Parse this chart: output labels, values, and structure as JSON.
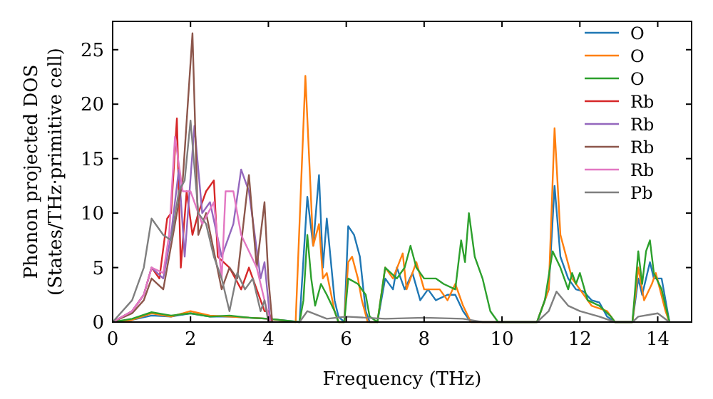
{
  "chart_data": {
    "type": "line",
    "xlabel": "Frequency (THz)",
    "ylabel": "Phonon projected DOS\n(States/THz·primitive cell)",
    "xlim": [
      0,
      14.87
    ],
    "ylim": [
      0,
      27.6
    ],
    "xticks": [
      0,
      2,
      4,
      6,
      8,
      10,
      12,
      14
    ],
    "yticks": [
      0,
      5,
      10,
      15,
      20,
      25
    ],
    "legend": "top right",
    "grid": false,
    "line_style": "solid",
    "series": [
      {
        "name": "O",
        "color": "#1f77b4",
        "x": [
          0,
          0.5,
          1,
          1.5,
          2,
          2.5,
          3,
          3.5,
          4,
          4.8,
          5,
          5.15,
          5.3,
          5.4,
          5.5,
          5.7,
          5.8,
          5.95,
          6.05,
          6.2,
          6.35,
          6.5,
          6.6,
          6.8,
          7,
          7.2,
          7.3,
          7.5,
          7.7,
          7.9,
          8.1,
          8.3,
          8.6,
          8.8,
          9,
          9.2,
          10.9,
          11.2,
          11.35,
          11.5,
          11.7,
          11.9,
          12.1,
          12.3,
          12.5,
          12.7,
          12.9,
          13.35,
          13.5,
          13.6,
          13.8,
          13.9,
          14.1,
          14.3
        ],
        "values": [
          0,
          0.2,
          0.6,
          0.5,
          0.8,
          0.5,
          0.5,
          0.4,
          0.3,
          0,
          11.5,
          7,
          13.5,
          5,
          9.5,
          2,
          0.5,
          0,
          8.8,
          8,
          6,
          1,
          0,
          0,
          4,
          3,
          5,
          3,
          4.5,
          2,
          3,
          2,
          2.5,
          2.5,
          1,
          0,
          0,
          3,
          12.5,
          6,
          4,
          3,
          2.8,
          2,
          1.8,
          0.5,
          0,
          0,
          4,
          2.5,
          5.5,
          4,
          4,
          0
        ]
      },
      {
        "name": "O",
        "color": "#ff7f0e",
        "x": [
          0,
          0.5,
          1,
          1.5,
          2,
          2.5,
          3,
          3.5,
          4,
          4.7,
          4.95,
          5.15,
          5.3,
          5.4,
          5.5,
          5.7,
          5.8,
          5.95,
          6.05,
          6.15,
          6.3,
          6.4,
          6.55,
          6.8,
          7,
          7.2,
          7.45,
          7.55,
          7.8,
          8,
          8.4,
          8.6,
          8.8,
          9,
          9.2,
          10.9,
          11.2,
          11.35,
          11.5,
          11.8,
          12,
          12.3,
          12.7,
          12.9,
          13.35,
          13.5,
          13.65,
          13.85,
          13.95,
          14.2,
          14.3
        ],
        "values": [
          0,
          0.2,
          0.8,
          0.5,
          1,
          0.6,
          0.5,
          0.4,
          0.3,
          0,
          22.6,
          7,
          9,
          4,
          4.5,
          1,
          0,
          0,
          5.5,
          6,
          4,
          2,
          0,
          0,
          5,
          4,
          6.3,
          3,
          5.5,
          3,
          3,
          2,
          3.5,
          1.5,
          0,
          0,
          3,
          17.8,
          8,
          4,
          3,
          1.5,
          1,
          0,
          0,
          5,
          2,
          3.5,
          4.5,
          1,
          0
        ]
      },
      {
        "name": "O",
        "color": "#2ca02c",
        "x": [
          0,
          0.5,
          1,
          1.5,
          2,
          2.5,
          3,
          3.5,
          4,
          4.8,
          4.9,
          5,
          5.1,
          5.2,
          5.35,
          5.5,
          5.7,
          5.8,
          5.95,
          6.05,
          6.3,
          6.5,
          6.6,
          6.8,
          7,
          7.3,
          7.5,
          7.65,
          7.8,
          8,
          8.3,
          8.5,
          8.8,
          8.95,
          9.05,
          9.15,
          9.3,
          9.5,
          9.7,
          9.9,
          10.9,
          11.1,
          11.3,
          11.5,
          11.7,
          11.8,
          11.9,
          12,
          12.2,
          12.5,
          12.8,
          12.9,
          13.35,
          13.5,
          13.6,
          13.7,
          13.8,
          13.9,
          14.1,
          14.3
        ],
        "values": [
          0,
          0.3,
          0.9,
          0.6,
          0.8,
          0.5,
          0.6,
          0.4,
          0.3,
          0,
          2,
          8,
          4,
          1.5,
          3.5,
          2.5,
          1,
          0,
          0,
          4,
          3.5,
          2.5,
          0.5,
          0,
          5,
          4,
          5,
          7,
          5,
          4,
          4,
          3.5,
          3,
          7.5,
          5.5,
          10,
          6,
          4,
          1,
          0,
          0,
          2,
          6.5,
          5,
          3,
          4.5,
          3.5,
          4.5,
          2,
          1.5,
          0.5,
          0,
          0,
          6.5,
          3.5,
          6.5,
          7.5,
          4.5,
          3,
          0
        ]
      },
      {
        "name": "Rb",
        "color": "#d62728",
        "x": [
          0,
          0.5,
          0.8,
          1,
          1.2,
          1.4,
          1.5,
          1.65,
          1.75,
          1.9,
          2.05,
          2.2,
          2.4,
          2.6,
          2.7,
          3,
          3.3,
          3.5,
          3.7,
          3.9,
          4,
          4.1
        ],
        "values": [
          0,
          1,
          2.5,
          5,
          4,
          9.5,
          10,
          18.7,
          5,
          12,
          8,
          10,
          12,
          13,
          6,
          5,
          3,
          5,
          3,
          1,
          1,
          0
        ]
      },
      {
        "name": "Rb",
        "color": "#9467bd",
        "x": [
          0,
          0.5,
          0.8,
          1,
          1.3,
          1.5,
          1.7,
          1.85,
          2.1,
          2.3,
          2.5,
          2.8,
          3.1,
          3.3,
          3.5,
          3.8,
          3.9,
          4.05
        ],
        "values": [
          0,
          1,
          2.5,
          5,
          4,
          8,
          14,
          6,
          18,
          10,
          11,
          6,
          9,
          14,
          12,
          4,
          5.5,
          0
        ]
      },
      {
        "name": "Rb",
        "color": "#8c564b",
        "x": [
          0,
          0.5,
          0.8,
          1,
          1.3,
          1.5,
          1.8,
          2.05,
          2.2,
          2.4,
          2.8,
          3,
          3.2,
          3.5,
          3.7,
          3.9,
          4,
          4.1
        ],
        "values": [
          0,
          0.8,
          2,
          4,
          3,
          7,
          13,
          26.5,
          8,
          10,
          3,
          5,
          4,
          13.5,
          5,
          11,
          4,
          0
        ]
      },
      {
        "name": "Rb",
        "color": "#e377c2",
        "x": [
          0,
          0.5,
          0.8,
          1,
          1.3,
          1.45,
          1.6,
          1.8,
          2,
          2.3,
          2.6,
          2.8,
          2.9,
          3.1,
          3.3,
          3.7,
          3.9,
          4.05
        ],
        "values": [
          0,
          1,
          2.5,
          5,
          4.5,
          8,
          17,
          12,
          12,
          9,
          11,
          4,
          12,
          12,
          8,
          5,
          2,
          0
        ]
      },
      {
        "name": "Pb",
        "color": "#7f7f7f",
        "x": [
          0,
          0.5,
          0.8,
          1,
          1.3,
          1.5,
          1.7,
          1.85,
          2,
          2.2,
          2.4,
          2.6,
          2.8,
          3,
          3.2,
          3.4,
          3.6,
          3.8,
          3.9,
          4,
          4.8,
          5,
          5.5,
          6,
          7,
          8,
          9,
          9.5,
          10.9,
          11.2,
          11.4,
          11.7,
          12,
          12.5,
          12.9,
          13.35,
          13.5,
          14,
          14.3
        ],
        "values": [
          0,
          2,
          5,
          9.5,
          8,
          7.5,
          12,
          13,
          18.5,
          10,
          9,
          6,
          4,
          1,
          4.5,
          3,
          4,
          1,
          2,
          0,
          0,
          1,
          0.3,
          0.5,
          0.3,
          0.4,
          0.3,
          0,
          0,
          1,
          2.8,
          1.5,
          1,
          0.5,
          0,
          0,
          0.5,
          0.8,
          0
        ]
      }
    ]
  }
}
